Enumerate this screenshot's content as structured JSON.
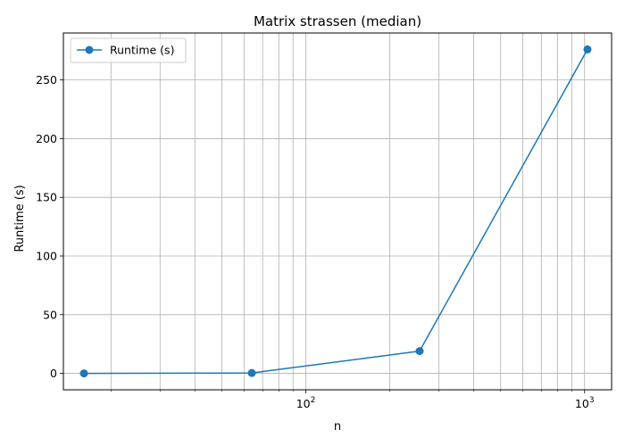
{
  "chart_data": {
    "type": "line",
    "title": "Matrix strassen (median)",
    "xlabel": "n",
    "ylabel": "Runtime (s)",
    "xscale": "log",
    "xlim": [
      13.5,
      1250
    ],
    "ylim": [
      -14,
      290
    ],
    "grid": true,
    "legend_position": "top-left",
    "x_major_ticks": [
      100,
      1000
    ],
    "x_major_tick_labels": [
      {
        "base": "10",
        "exp": "2"
      },
      {
        "base": "10",
        "exp": "3"
      }
    ],
    "x_minor_ticks": [
      20,
      30,
      40,
      50,
      60,
      70,
      80,
      90,
      200,
      300,
      400,
      500,
      600,
      700,
      800,
      900
    ],
    "y_ticks": [
      0,
      50,
      100,
      150,
      200,
      250
    ],
    "series": [
      {
        "name": "Runtime (s)",
        "color": "#1f77b4",
        "marker": "circle",
        "x": [
          16,
          64,
          256,
          1024
        ],
        "y": [
          0.0,
          0.3,
          19.0,
          276.0
        ]
      }
    ]
  }
}
